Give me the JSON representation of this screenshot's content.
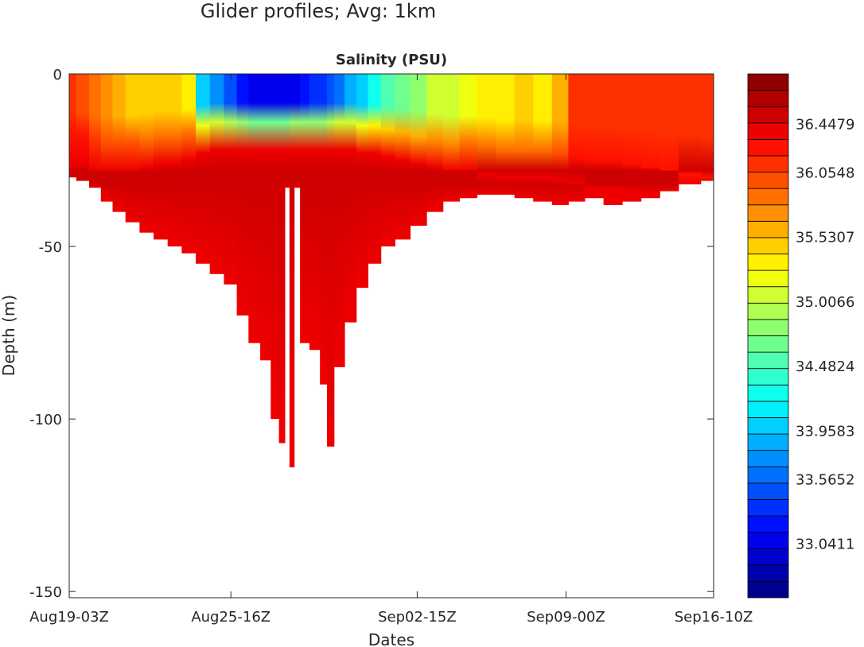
{
  "page_title": "Glider profiles; Avg: 1km",
  "chart_data": {
    "type": "heatmap",
    "title": "Salinity  (PSU)",
    "xlabel": "Dates",
    "ylabel": "Depth  (m)",
    "xlim_days": [
      0,
      27.5
    ],
    "ylim": [
      -151.8,
      0
    ],
    "xticks": [
      {
        "day": 0,
        "label": "Aug19-03Z"
      },
      {
        "day": 6.9,
        "label": "Aug25-16Z"
      },
      {
        "day": 14.85,
        "label": "Sep02-15Z"
      },
      {
        "day": 21.2,
        "label": "Sep09-00Z"
      },
      {
        "day": 27.5,
        "label": "Sep16-10Z"
      }
    ],
    "yticks": [
      {
        "value": 0,
        "label": "0"
      },
      {
        "value": -50,
        "label": "-50"
      },
      {
        "value": -100,
        "label": "-100"
      },
      {
        "value": -150,
        "label": "-150"
      }
    ],
    "colorbar": {
      "range": [
        32.6,
        36.85
      ],
      "levels": 32,
      "ticks": [
        {
          "value": 36.4479,
          "label": "36.4479"
        },
        {
          "value": 36.0548,
          "label": "36.0548"
        },
        {
          "value": 35.5307,
          "label": "35.5307"
        },
        {
          "value": 35.0066,
          "label": "35.0066"
        },
        {
          "value": 34.4824,
          "label": "34.4824"
        },
        {
          "value": 33.9583,
          "label": "33.9583"
        },
        {
          "value": 33.5652,
          "label": "33.5652"
        },
        {
          "value": 33.0411,
          "label": "33.0411"
        }
      ]
    },
    "profiles_note_units": "day since start, surface salinity PSU, mixed layer depth m, max depth m",
    "profiles": [
      [
        0.0,
        36.1,
        18,
        30
      ],
      [
        0.6,
        36.0,
        18,
        31
      ],
      [
        1.1,
        35.9,
        20,
        33
      ],
      [
        1.6,
        35.7,
        20,
        37
      ],
      [
        2.1,
        35.6,
        20,
        40
      ],
      [
        2.7,
        35.5,
        20,
        43
      ],
      [
        3.3,
        35.4,
        19,
        46
      ],
      [
        3.9,
        35.4,
        18,
        48
      ],
      [
        4.5,
        35.4,
        18,
        50
      ],
      [
        5.1,
        35.3,
        17,
        52
      ],
      [
        5.7,
        34.0,
        15,
        55
      ],
      [
        6.3,
        33.7,
        14,
        58
      ],
      [
        6.9,
        33.5,
        14,
        61
      ],
      [
        7.4,
        33.2,
        14,
        70
      ],
      [
        7.9,
        33.0,
        14,
        78
      ],
      [
        8.4,
        33.0,
        14,
        83
      ],
      [
        8.8,
        33.0,
        14,
        100
      ],
      [
        9.1,
        33.0,
        14,
        107
      ],
      [
        9.3,
        33.0,
        14,
        33
      ],
      [
        9.5,
        33.1,
        14,
        114
      ],
      [
        9.7,
        33.1,
        14,
        33
      ],
      [
        10.0,
        33.2,
        14,
        78
      ],
      [
        10.5,
        33.3,
        14,
        80
      ],
      [
        10.9,
        33.3,
        14,
        90
      ],
      [
        11.1,
        33.5,
        14,
        108
      ],
      [
        11.5,
        33.6,
        14,
        85
      ],
      [
        12.0,
        33.8,
        14,
        72
      ],
      [
        12.5,
        34.0,
        15,
        62
      ],
      [
        13.0,
        34.3,
        15,
        55
      ],
      [
        13.6,
        34.5,
        16,
        50
      ],
      [
        14.2,
        34.7,
        17,
        48
      ],
      [
        14.9,
        34.8,
        18,
        44
      ],
      [
        15.6,
        35.0,
        19,
        40
      ],
      [
        16.3,
        35.1,
        20,
        37
      ],
      [
        17.0,
        35.2,
        20,
        36
      ],
      [
        17.8,
        35.3,
        21,
        35
      ],
      [
        18.6,
        35.3,
        22,
        35
      ],
      [
        19.4,
        35.4,
        22,
        36
      ],
      [
        20.2,
        35.3,
        22,
        37
      ],
      [
        21.0,
        35.6,
        23,
        38
      ],
      [
        21.6,
        36.1,
        24,
        37
      ],
      [
        22.4,
        36.1,
        25,
        36
      ],
      [
        23.2,
        36.1,
        25,
        38
      ],
      [
        24.0,
        36.1,
        26,
        37
      ],
      [
        24.8,
        36.1,
        27,
        36
      ],
      [
        25.6,
        36.1,
        28,
        34
      ],
      [
        26.4,
        36.1,
        29,
        32
      ],
      [
        27.5,
        36.1,
        30,
        31
      ]
    ]
  }
}
